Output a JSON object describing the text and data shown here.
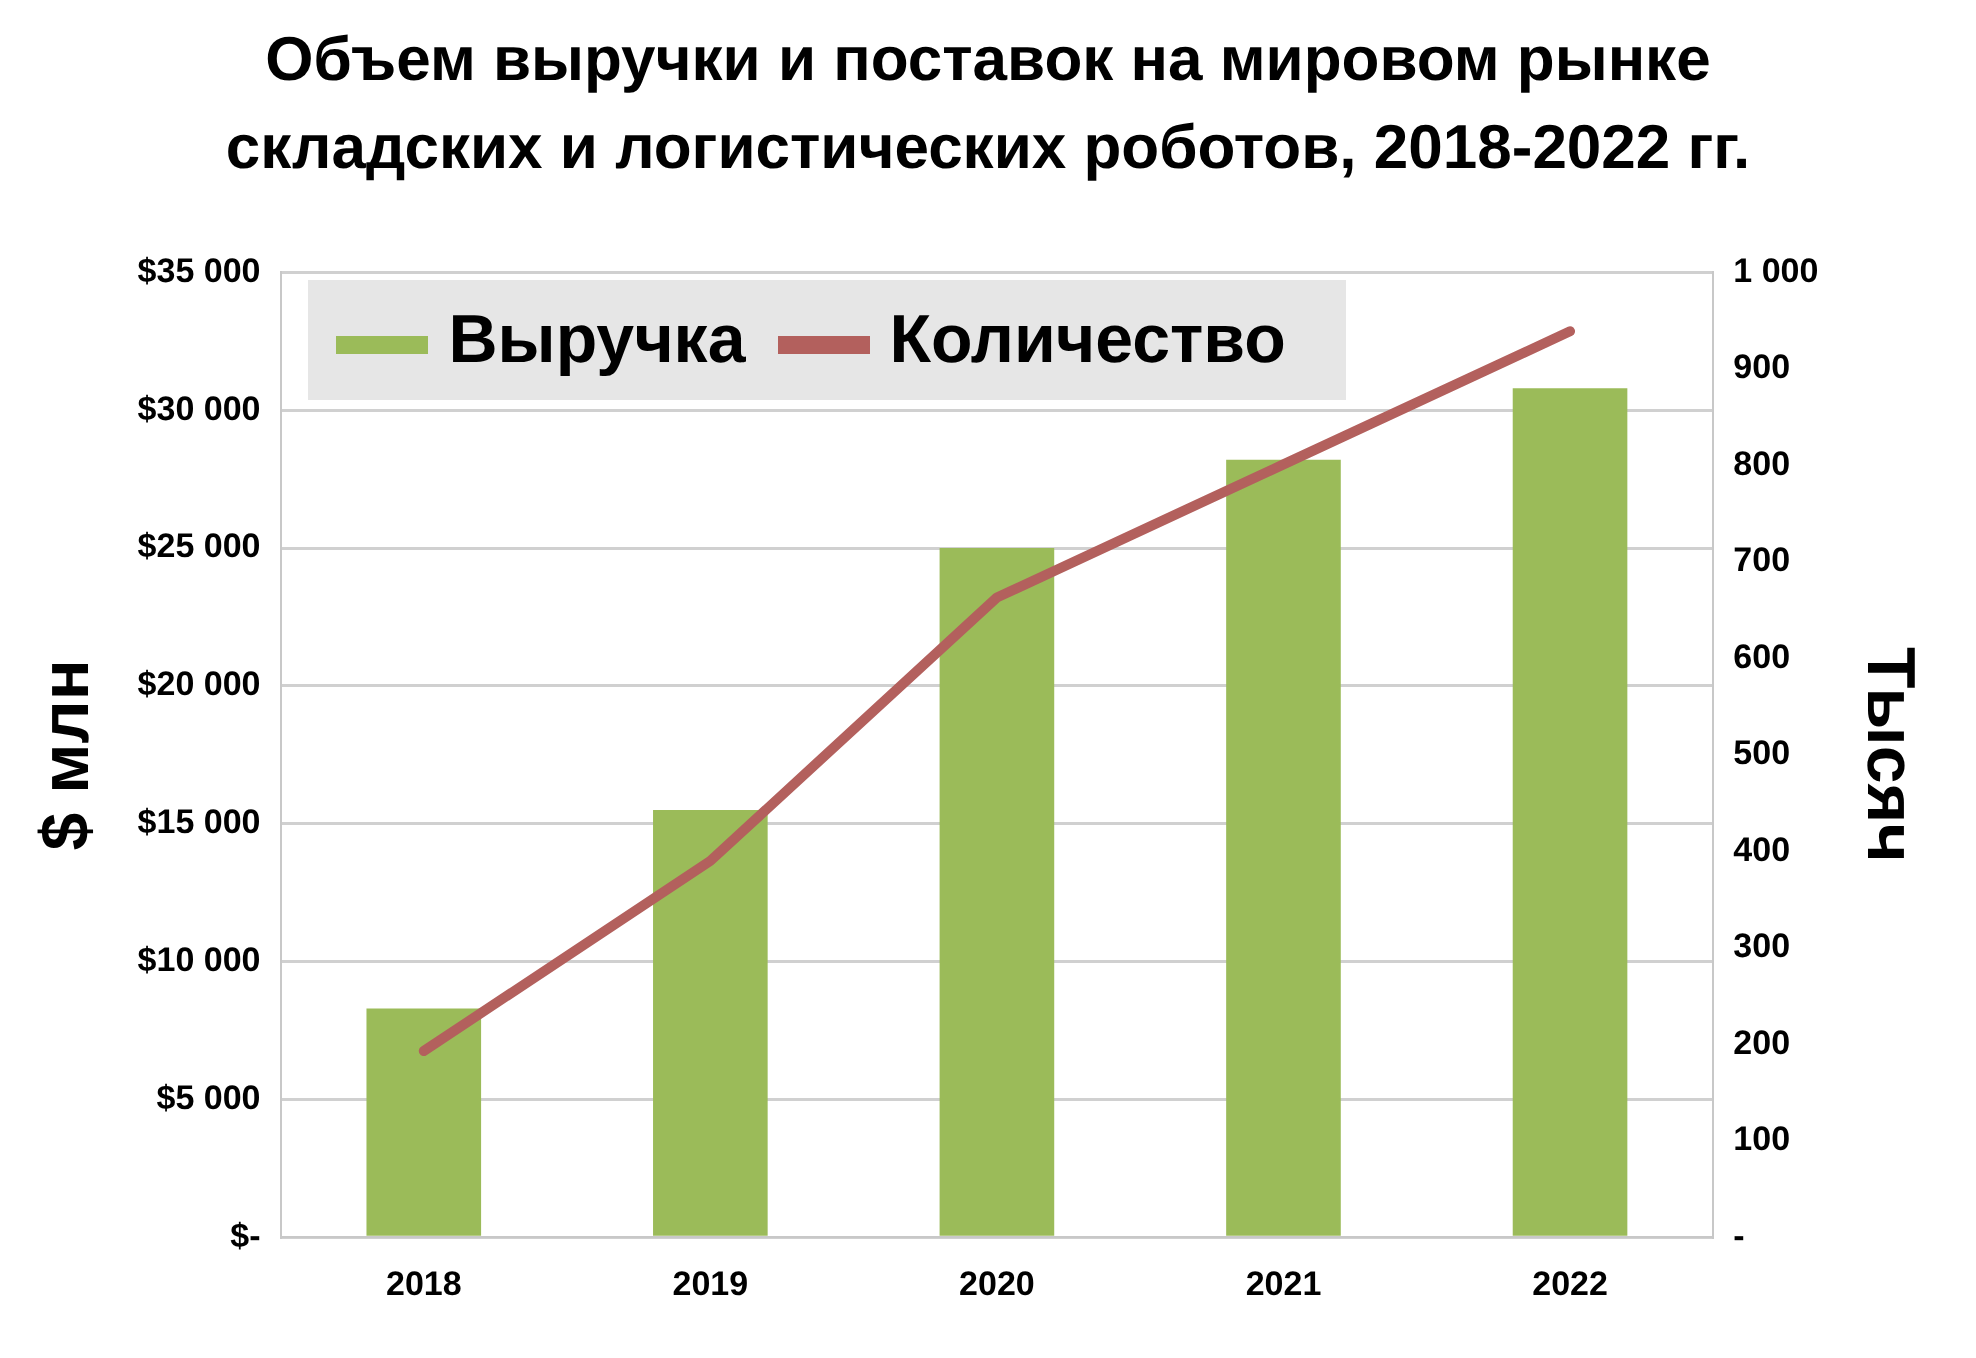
{
  "chart_data": {
    "type": "bar",
    "title": "Объем выручки и поставок на мировом рынке складских и логистических роботов, 2018-2022 гг.",
    "ylabel": "$ млн",
    "y2label": "Тысяч",
    "categories": [
      "2018",
      "2019",
      "2020",
      "2021",
      "2022"
    ],
    "series": [
      {
        "name": "Выручка",
        "color": "#9bbb59",
        "values": [
          8300,
          15500,
          25000,
          28200,
          30800
        ]
      },
      {
        "name": "Количество",
        "type": "line",
        "axis": "y2",
        "color": "#b3605d",
        "values": [
          193,
          390,
          663,
          801,
          939
        ]
      }
    ],
    "ylim": [
      0,
      35000
    ],
    "yticks": [
      {
        "value": 0,
        "label": "$-"
      },
      {
        "value": 5000,
        "label": "$5 000"
      },
      {
        "value": 10000,
        "label": "$10 000"
      },
      {
        "value": 15000,
        "label": "$15 000"
      },
      {
        "value": 20000,
        "label": "$20 000"
      },
      {
        "value": 25000,
        "label": "$25 000"
      },
      {
        "value": 30000,
        "label": "$30 000"
      },
      {
        "value": 35000,
        "label": "$35 000"
      }
    ],
    "y2lim": [
      0,
      1000
    ],
    "y2ticks": [
      {
        "value": 0,
        "label": "-"
      },
      100,
      200,
      300,
      400,
      500,
      600,
      700,
      800,
      900,
      {
        "value": 1000,
        "label": "1 000"
      }
    ],
    "grid": "y",
    "legend": "top left",
    "marker": "none",
    "line_style": "solid"
  }
}
